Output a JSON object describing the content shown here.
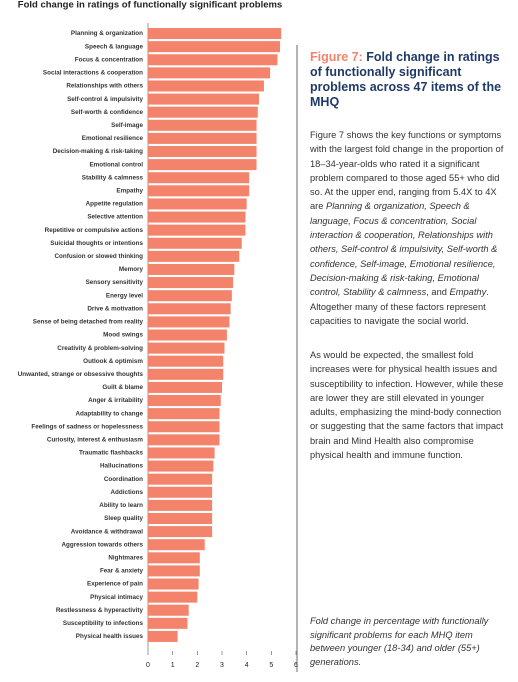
{
  "chart_data": {
    "type": "bar",
    "orientation": "horizontal",
    "title": "Fold change in ratings of functionally significant problems",
    "categories": [
      "Planning & organization",
      "Speech & language",
      "Focus & concentration",
      "Social interactions & cooperation",
      "Relationships with others",
      "Self-control & impulsivity",
      "Self-worth & confidence",
      "Self-image",
      "Emotional resilience",
      "Decision-making & risk-taking",
      "Emotional control",
      "Stability & calmness",
      "Empathy",
      "Appetite regulation",
      "Selective attention",
      "Repetitive or compulsive actions",
      "Suicidal thoughts or intentions",
      "Confusion or slowed thinking",
      "Memory",
      "Sensory sensitivity",
      "Energy level",
      "Drive & motivation",
      "Sense of being detached from reality",
      "Mood swings",
      "Creativity & problem-solving",
      "Outlook & optimism",
      "Unwanted, strange or obsessive thoughts",
      "Guilt & blame",
      "Anger & irritability",
      "Adaptability to change",
      "Feelings of sadness or hopelessness",
      "Curiosity, interest & enthusiasm",
      "Traumatic flashbacks",
      "Hallucinations",
      "Coordination",
      "Addictions",
      "Ability to learn",
      "Sleep quality",
      "Avoidance & withdrawal",
      "Aggression towards others",
      "Nightmares",
      "Fear & anxiety",
      "Experience of pain",
      "Physical intimacy",
      "Restlessness & hyperactivity",
      "Susceptibility to infections",
      "Physical health issues"
    ],
    "values": [
      5.4,
      5.35,
      5.25,
      4.95,
      4.7,
      4.5,
      4.45,
      4.4,
      4.4,
      4.4,
      4.4,
      4.1,
      4.1,
      4.0,
      3.95,
      3.95,
      3.8,
      3.7,
      3.5,
      3.45,
      3.4,
      3.35,
      3.3,
      3.2,
      3.1,
      3.05,
      3.05,
      3.0,
      2.95,
      2.9,
      2.9,
      2.9,
      2.7,
      2.65,
      2.6,
      2.6,
      2.6,
      2.6,
      2.6,
      2.3,
      2.1,
      2.1,
      2.05,
      2.0,
      1.65,
      1.6,
      1.2
    ],
    "color": "#f4836b",
    "xlim": [
      0,
      6
    ],
    "xticks": [
      0,
      1,
      2,
      3,
      4,
      5,
      6
    ]
  },
  "side": {
    "heading": [
      "Figure 7:",
      " Fold change in ratings of functionally significant problems across 47 items of the MHQ"
    ],
    "paragraphs": [
      [
        {
          "text": "Figure 7 shows the key functions or symptoms with the largest fold change in the proportion of 18–34-year-olds who rated it a significant problem compared to those aged 55+ who did so. At the upper end, ranging from 5.4X to 4X are ",
          "italic": false
        },
        {
          "text": "Planning & organization, Speech & language, Focus & concentration, Social interaction & cooperation, Relationships with others, Self-control & impulsivity, Self-worth & confidence, Self-image, Emotional resilience, Decision-making & risk-taking, Emotional control, Stability & calmness",
          "italic": true
        },
        {
          "text": ", and ",
          "italic": false
        },
        {
          "text": "Empathy",
          "italic": true
        },
        {
          "text": ". Altogether many of these factors represent capacities to navigate the social world.",
          "italic": false
        }
      ],
      [
        {
          "text": "As would be expected, the smallest fold increases were for physical health issues and susceptibility to infection. However, while these are lower they are still elevated in younger adults, emphasizing the mind-body connection or suggesting that the same factors that impact brain and Mind Health also compromise physical health and immune function.",
          "italic": false
        }
      ]
    ],
    "caption": "Fold change in percentage with functionally significant problems for each MHQ item between younger (18-34) and older (55+) generations."
  }
}
